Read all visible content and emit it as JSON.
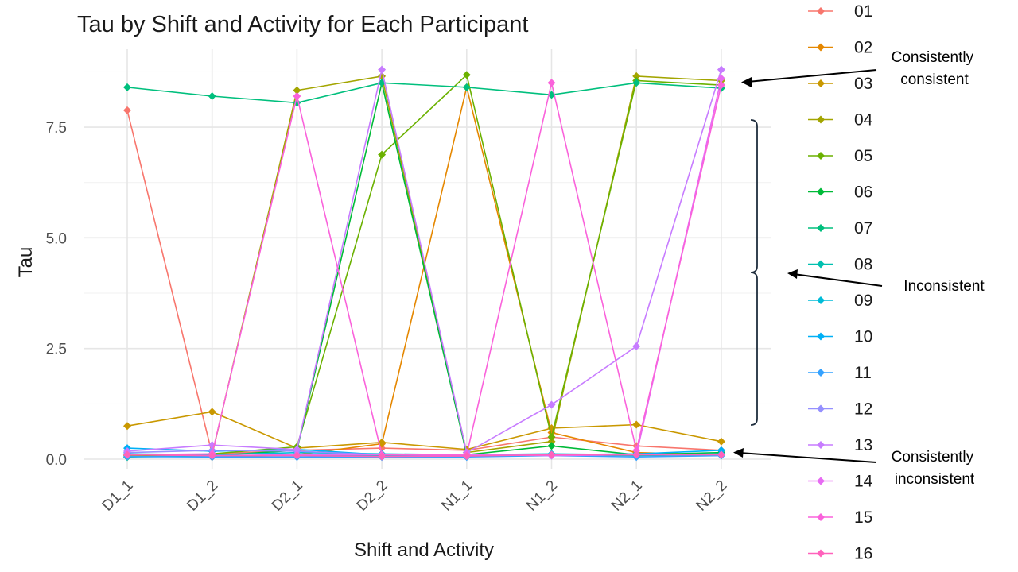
{
  "chart_data": {
    "type": "line",
    "title": "Tau by Shift and Activity for Each Participant",
    "xlabel": "Shift and Activity",
    "ylabel": "Tau",
    "categories": [
      "D1_1",
      "D1_2",
      "D2_1",
      "D2_2",
      "N1_1",
      "N1_2",
      "N2_1",
      "N2_2"
    ],
    "y_ticks": [
      "0.0",
      "2.5",
      "5.0",
      "7.5"
    ],
    "ylim": [
      -0.2,
      9.0
    ],
    "grid": true,
    "legend_position": "right",
    "marker": "diamond",
    "series": [
      {
        "name": "01",
        "color": "#F8766D",
        "values": [
          7.88,
          0.12,
          0.2,
          0.25,
          0.2,
          0.5,
          0.3,
          0.2
        ]
      },
      {
        "name": "02",
        "color": "#E58700",
        "values": [
          0.1,
          0.05,
          0.1,
          0.35,
          8.4,
          0.6,
          0.15,
          0.1
        ]
      },
      {
        "name": "03",
        "color": "#C99800",
        "values": [
          0.75,
          1.07,
          0.25,
          0.38,
          0.22,
          0.7,
          0.78,
          0.4
        ]
      },
      {
        "name": "04",
        "color": "#A3A500",
        "values": [
          0.08,
          0.1,
          8.33,
          8.65,
          0.15,
          0.4,
          8.65,
          8.55
        ]
      },
      {
        "name": "05",
        "color": "#6BB100",
        "values": [
          0.05,
          0.12,
          0.28,
          6.88,
          8.68,
          0.5,
          8.55,
          8.45
        ]
      },
      {
        "name": "06",
        "color": "#00BA38",
        "values": [
          0.1,
          0.08,
          0.2,
          8.5,
          0.1,
          0.3,
          0.1,
          0.15
        ]
      },
      {
        "name": "07",
        "color": "#00BF7D",
        "values": [
          8.4,
          8.2,
          8.05,
          8.5,
          8.4,
          8.23,
          8.5,
          8.38
        ]
      },
      {
        "name": "08",
        "color": "#00C0AF",
        "values": [
          0.05,
          0.07,
          0.1,
          0.08,
          0.06,
          0.1,
          0.08,
          0.1
        ]
      },
      {
        "name": "09",
        "color": "#00BCD8",
        "values": [
          0.12,
          0.1,
          0.15,
          0.12,
          0.1,
          0.12,
          0.1,
          0.12
        ]
      },
      {
        "name": "10",
        "color": "#00B0F6",
        "values": [
          0.25,
          0.18,
          0.22,
          0.1,
          0.08,
          0.1,
          0.12,
          0.2
        ]
      },
      {
        "name": "11",
        "color": "#35A2FF",
        "values": [
          0.06,
          0.05,
          0.05,
          0.05,
          0.05,
          0.08,
          0.05,
          0.08
        ]
      },
      {
        "name": "12",
        "color": "#9590FF",
        "values": [
          0.15,
          0.2,
          0.18,
          0.1,
          0.08,
          0.1,
          0.1,
          0.1
        ]
      },
      {
        "name": "13",
        "color": "#C77CFF",
        "values": [
          0.18,
          0.32,
          0.22,
          8.8,
          0.15,
          1.23,
          2.55,
          8.8
        ]
      },
      {
        "name": "14",
        "color": "#E76BF3",
        "values": [
          0.1,
          0.08,
          0.1,
          0.1,
          0.1,
          0.08,
          0.1,
          8.6
        ]
      },
      {
        "name": "15",
        "color": "#FA62DB",
        "values": [
          0.1,
          0.12,
          8.2,
          0.1,
          0.1,
          8.5,
          0.2,
          8.45
        ]
      },
      {
        "name": "16",
        "color": "#FF62BC",
        "values": [
          0.1,
          0.08,
          0.08,
          0.06,
          0.07,
          0.1,
          0.1,
          0.1
        ]
      }
    ],
    "annotations": [
      {
        "text_lines": [
          "Consistently",
          "consistent"
        ]
      },
      {
        "text_lines": [
          "Inconsistent"
        ]
      },
      {
        "text_lines": [
          "Consistently",
          "inconsistent"
        ]
      }
    ]
  }
}
